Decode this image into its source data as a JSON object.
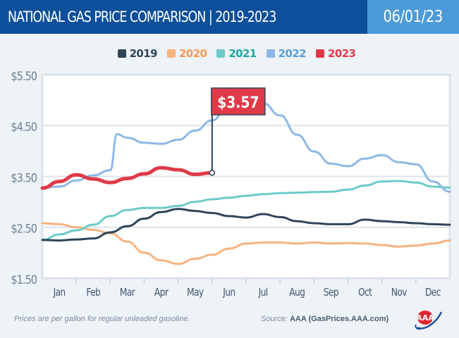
{
  "header": {
    "title": "NATIONAL GAS PRICE COMPARISON | 2019-2023",
    "date": "06/01/23",
    "title_bg": "#0d4f9a",
    "date_bg": "#4b9bd8"
  },
  "footer": {
    "note": "Prices are per gallon for regular unleaded gasoline.",
    "source_label": "Source:",
    "source_value": "AAA (GasPrices.AAA.com)",
    "logo": "aaa-logo"
  },
  "chart_data": {
    "type": "line",
    "title": "NATIONAL GAS PRICE COMPARISON | 2019-2023",
    "xlabel": "",
    "ylabel": "",
    "x_ticks": [
      "Jan",
      "Feb",
      "Mar",
      "Apr",
      "May",
      "Jun",
      "Jul",
      "Aug",
      "Sep",
      "Oct",
      "Nov",
      "Dec"
    ],
    "y_ticks": [
      "$1.50",
      "$2.50",
      "$3.50",
      "$4.50",
      "$5.50"
    ],
    "y_tick_values": [
      1.5,
      2.5,
      3.5,
      4.5,
      5.5
    ],
    "ylim": [
      1.5,
      5.5
    ],
    "xlim_months": [
      0,
      12
    ],
    "grid": "horizontal",
    "legend_position": "top-center",
    "annotation": {
      "label": "$3.57",
      "series": "2023",
      "x_month": 5.0,
      "value": 3.57,
      "color": "#e03a48"
    },
    "series": [
      {
        "name": "2019",
        "color": "#2e4559",
        "x": [
          0,
          0.5,
          1,
          1.5,
          2,
          2.5,
          3,
          3.5,
          4,
          4.5,
          5,
          5.5,
          6,
          6.5,
          7,
          7.5,
          8,
          8.5,
          9,
          9.5,
          10,
          10.5,
          11,
          11.5,
          12
        ],
        "values": [
          2.25,
          2.24,
          2.26,
          2.28,
          2.4,
          2.52,
          2.67,
          2.8,
          2.86,
          2.82,
          2.78,
          2.72,
          2.69,
          2.76,
          2.7,
          2.62,
          2.58,
          2.56,
          2.56,
          2.65,
          2.62,
          2.6,
          2.58,
          2.56,
          2.55
        ]
      },
      {
        "name": "2020",
        "color": "#f7b27e",
        "x": [
          0,
          0.5,
          1,
          1.5,
          2,
          2.5,
          3,
          3.5,
          4,
          4.5,
          5,
          5.5,
          6,
          6.5,
          7,
          7.5,
          8,
          8.5,
          9,
          9.5,
          10,
          10.5,
          11,
          11.5,
          12
        ],
        "values": [
          2.58,
          2.56,
          2.5,
          2.45,
          2.38,
          2.22,
          2.0,
          1.85,
          1.78,
          1.88,
          1.96,
          2.08,
          2.18,
          2.2,
          2.2,
          2.18,
          2.2,
          2.18,
          2.19,
          2.18,
          2.15,
          2.12,
          2.14,
          2.18,
          2.24
        ]
      },
      {
        "name": "2021",
        "color": "#6ccbc8",
        "x": [
          0,
          0.5,
          1,
          1.5,
          2,
          2.5,
          3,
          3.5,
          4,
          4.5,
          5,
          5.5,
          6,
          6.5,
          7,
          7.5,
          8,
          8.5,
          9,
          9.5,
          10,
          10.5,
          11,
          11.5,
          12
        ],
        "values": [
          2.25,
          2.36,
          2.44,
          2.55,
          2.72,
          2.84,
          2.88,
          2.88,
          2.92,
          3.0,
          3.05,
          3.08,
          3.12,
          3.15,
          3.17,
          3.18,
          3.19,
          3.2,
          3.24,
          3.32,
          3.4,
          3.41,
          3.38,
          3.3,
          3.28
        ]
      },
      {
        "name": "2022",
        "color": "#8db8e6",
        "x": [
          0,
          0.5,
          1,
          1.5,
          2,
          2.2,
          2.5,
          3,
          3.5,
          4,
          4.5,
          5,
          5.5,
          6,
          6.5,
          7,
          7.5,
          8,
          8.5,
          9,
          9.5,
          10,
          10.5,
          11,
          11.5,
          12
        ],
        "values": [
          3.28,
          3.3,
          3.42,
          3.52,
          3.62,
          4.33,
          4.26,
          4.16,
          4.14,
          4.22,
          4.4,
          4.6,
          4.92,
          5.0,
          4.94,
          4.7,
          4.32,
          3.99,
          3.75,
          3.7,
          3.85,
          3.92,
          3.78,
          3.74,
          3.4,
          3.2
        ]
      },
      {
        "name": "2023",
        "color": "#e03a48",
        "x": [
          0,
          0.5,
          1,
          1.5,
          2,
          2.5,
          3,
          3.5,
          4,
          4.5,
          5.0
        ],
        "values": [
          3.27,
          3.4,
          3.53,
          3.45,
          3.38,
          3.46,
          3.55,
          3.67,
          3.63,
          3.54,
          3.57
        ]
      }
    ]
  }
}
